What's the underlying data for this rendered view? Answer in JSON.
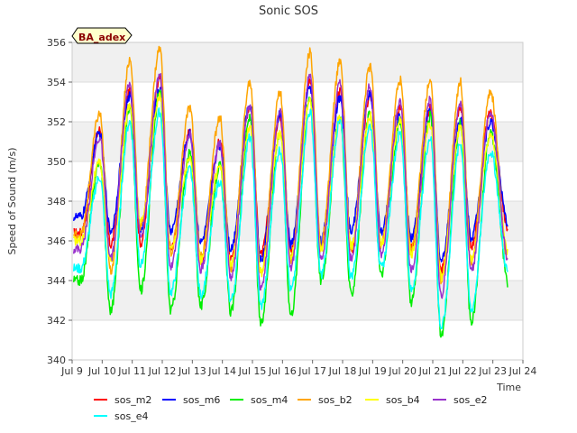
{
  "chart_data": {
    "type": "line",
    "title": "Sonic SOS",
    "xlabel": "Time",
    "ylabel": "Speed of Sound (m/s)",
    "badge": "BA_adex",
    "xlim": [
      9,
      24
    ],
    "ylim": [
      340,
      356
    ],
    "x_ticks": [
      {
        "v": 9,
        "label": "Jul 9"
      },
      {
        "v": 10,
        "label": "Jul 10"
      },
      {
        "v": 11,
        "label": "Jul 11"
      },
      {
        "v": 12,
        "label": "Jul 12"
      },
      {
        "v": 13,
        "label": "Jul 13"
      },
      {
        "v": 14,
        "label": "Jul 14"
      },
      {
        "v": 15,
        "label": "Jul 15"
      },
      {
        "v": 16,
        "label": "Jul 16"
      },
      {
        "v": 17,
        "label": "Jul 17"
      },
      {
        "v": 18,
        "label": "Jul 18"
      },
      {
        "v": 19,
        "label": "Jul 19"
      },
      {
        "v": 20,
        "label": "Jul 20"
      },
      {
        "v": 21,
        "label": "Jul 21"
      },
      {
        "v": 22,
        "label": "Jul 22"
      },
      {
        "v": 23,
        "label": "Jul 23"
      },
      {
        "v": 24,
        "label": "Jul 24"
      }
    ],
    "y_ticks": [
      340,
      342,
      344,
      346,
      348,
      350,
      352,
      354,
      356
    ],
    "grid": true,
    "legend_position": "bottom",
    "days": [
      9.9,
      10.9,
      11.9,
      12.9,
      13.9,
      14.9,
      15.9,
      16.9,
      17.9,
      18.9,
      19.9,
      20.9,
      21.9,
      22.9
    ],
    "series": [
      {
        "name": "sos_m2",
        "color": "#ff0000",
        "peaks": [
          351.6,
          353.5,
          354.2,
          351.5,
          351.0,
          352.8,
          352.3,
          354.0,
          353.5,
          353.3,
          352.8,
          352.7,
          352.7,
          352.4
        ],
        "troughs": [
          346.4,
          345.8,
          345.9,
          345.6,
          345.0,
          345.1,
          345.3,
          345.5,
          345.8,
          345.5,
          346.0,
          345.6,
          344.5,
          345.7,
          346.6
        ]
      },
      {
        "name": "sos_m6",
        "color": "#0000ff",
        "peaks": [
          351.4,
          353.3,
          353.6,
          351.4,
          350.8,
          352.9,
          352.4,
          353.8,
          353.2,
          353.5,
          352.3,
          352.6,
          352.1,
          352.0
        ],
        "troughs": [
          347.2,
          346.5,
          346.6,
          346.5,
          345.9,
          345.6,
          345.0,
          345.8,
          346.0,
          346.5,
          346.4,
          346.2,
          345.0,
          346.2,
          346.8
        ]
      },
      {
        "name": "sos_m4",
        "color": "#00ee00",
        "peaks": [
          350.0,
          352.7,
          353.5,
          350.4,
          349.8,
          352.2,
          351.5,
          353.2,
          352.2,
          352.4,
          352.0,
          352.3,
          351.9,
          351.5
        ],
        "troughs": [
          344.0,
          342.5,
          343.5,
          342.5,
          342.7,
          342.4,
          341.8,
          342.3,
          344.0,
          343.3,
          344.3,
          342.9,
          341.2,
          341.9,
          343.8
        ]
      },
      {
        "name": "sos_b2",
        "color": "#ffa500",
        "peaks": [
          352.4,
          355.1,
          355.7,
          352.7,
          352.2,
          354.0,
          353.5,
          355.5,
          355.0,
          354.8,
          354.1,
          354.1,
          354.0,
          353.5
        ],
        "troughs": [
          346.3,
          344.5,
          346.7,
          345.4,
          345.2,
          344.6,
          344.3,
          345.1,
          345.8,
          345.6,
          345.8,
          345.6,
          344.0,
          345.0,
          344.8
        ]
      },
      {
        "name": "sos_b4",
        "color": "#ffff00",
        "peaks": [
          349.9,
          352.8,
          353.3,
          350.1,
          349.8,
          351.8,
          351.4,
          353.1,
          352.2,
          352.3,
          352.1,
          351.9,
          351.7,
          351.4
        ],
        "troughs": [
          346.0,
          345.0,
          346.9,
          345.6,
          345.0,
          344.8,
          344.4,
          345.2,
          345.5,
          345.7,
          345.8,
          345.3,
          344.2,
          345.0,
          345.4
        ]
      },
      {
        "name": "sos_e2",
        "color": "#9932cc",
        "peaks": [
          351.2,
          353.9,
          354.4,
          351.4,
          350.9,
          352.9,
          352.5,
          354.3,
          353.9,
          353.8,
          353.1,
          353.1,
          353.0,
          352.5
        ],
        "troughs": [
          345.6,
          345.1,
          346.2,
          344.7,
          344.6,
          344.2,
          343.6,
          344.7,
          345.2,
          345.1,
          345.3,
          344.5,
          343.3,
          344.5,
          345.0
        ]
      },
      {
        "name": "sos_e4",
        "color": "#00ffff",
        "peaks": [
          349.2,
          352.0,
          352.5,
          349.6,
          349.0,
          351.2,
          350.6,
          352.5,
          352.0,
          351.8,
          351.4,
          351.2,
          350.9,
          350.5
        ],
        "troughs": [
          344.6,
          343.3,
          344.8,
          343.4,
          343.3,
          343.0,
          342.7,
          343.5,
          344.3,
          344.2,
          344.6,
          343.5,
          341.6,
          342.5,
          344.4
        ]
      }
    ]
  }
}
